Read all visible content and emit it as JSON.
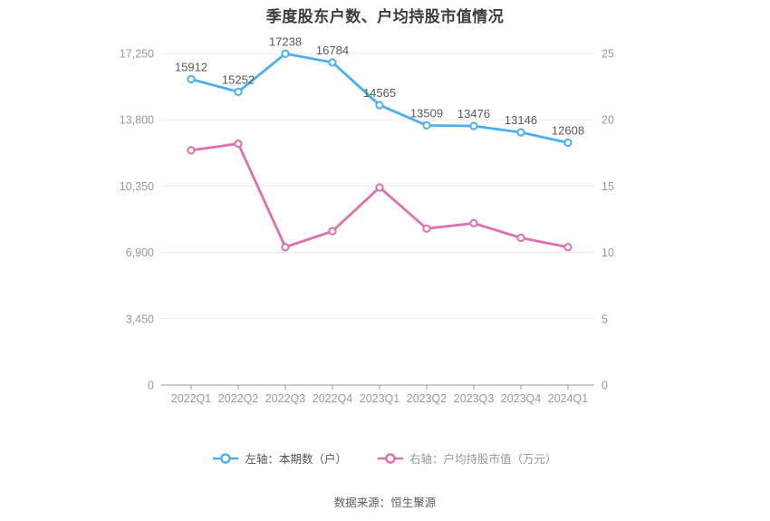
{
  "title": "季度股东户数、户均持股市值情况",
  "source": "数据来源：恒生聚源",
  "legend": {
    "items": [
      {
        "label": "左轴：本期数（户）",
        "color": "#4bb0f2",
        "text_color": "#555555"
      },
      {
        "label": "右轴：户均持股市值（万元）",
        "color": "#e06fae",
        "text_color": "#999999"
      }
    ]
  },
  "colors": {
    "shareholders_line": "#4bb0f2",
    "market_value_line": "#e06fae",
    "gridline": "#e5eaf1",
    "axis_line": "#9a9a9a",
    "axis_label": "#999999",
    "data_label": "#5a5a5a",
    "title": "#3c3c3c"
  },
  "chart_data": {
    "type": "line",
    "title": "季度股东户数、户均持股市值情况",
    "categories": [
      "2022Q1",
      "2022Q2",
      "2022Q3",
      "2022Q4",
      "2023Q1",
      "2023Q2",
      "2023Q3",
      "2023Q4",
      "2024Q1"
    ],
    "series": [
      {
        "name": "左轴：本期数（户）",
        "yaxis": "left",
        "color": "#4bb0f2",
        "values": [
          15912,
          15252,
          17238,
          16784,
          14565,
          13509,
          13476,
          13146,
          12608
        ],
        "data_labels": true
      },
      {
        "name": "右轴：户均持股市值（万元）",
        "yaxis": "right",
        "color": "#e06fae",
        "values": [
          17.7,
          18.2,
          10.4,
          11.6,
          14.9,
          11.8,
          12.2,
          11.1,
          10.4
        ],
        "data_labels": false
      }
    ],
    "left_axis": {
      "min": 0,
      "max": 17250,
      "ticks": [
        0,
        3450,
        6900,
        10350,
        13800,
        17250
      ],
      "tick_labels": [
        "0",
        "3,450",
        "6,900",
        "10,350",
        "13,800",
        "17,250"
      ]
    },
    "right_axis": {
      "min": 0,
      "max": 25,
      "ticks": [
        0,
        5,
        10,
        15,
        20,
        25
      ],
      "tick_labels": [
        "0",
        "5",
        "10",
        "15",
        "20",
        "25"
      ]
    },
    "grid": true,
    "legend_position": "bottom"
  }
}
